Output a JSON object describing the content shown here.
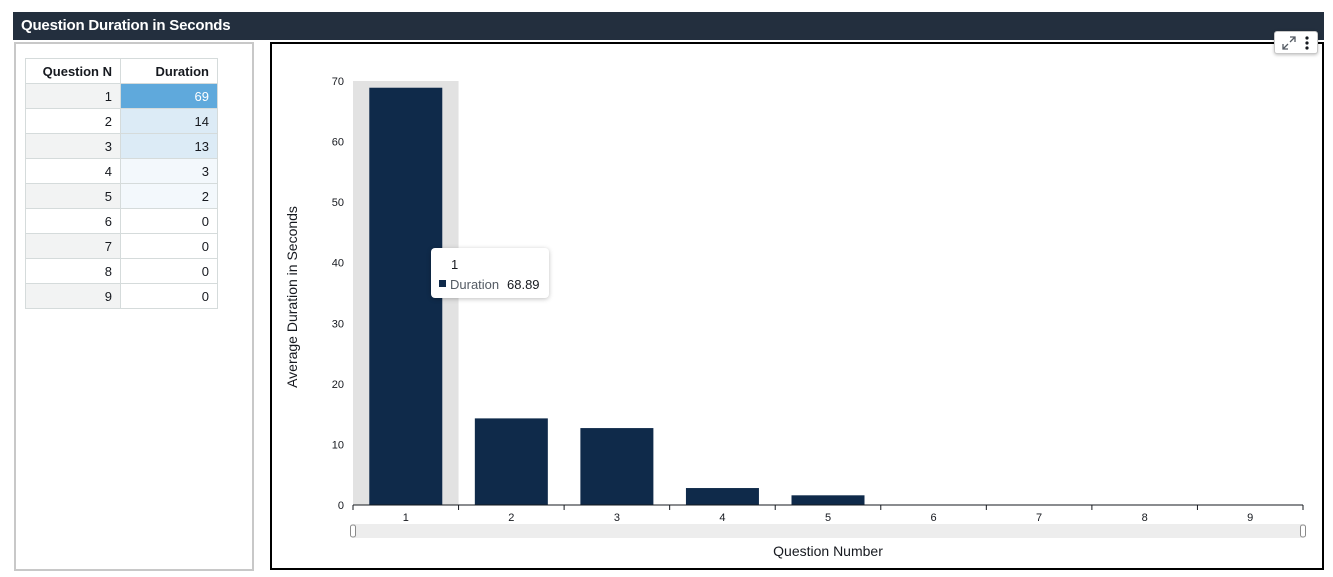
{
  "title": "Question Duration in Seconds",
  "table": {
    "headers": [
      "Question N",
      "Duration"
    ],
    "rows": [
      {
        "q": "1",
        "d": "69"
      },
      {
        "q": "2",
        "d": "14"
      },
      {
        "q": "3",
        "d": "13"
      },
      {
        "q": "4",
        "d": "3"
      },
      {
        "q": "5",
        "d": "2"
      },
      {
        "q": "6",
        "d": "0"
      },
      {
        "q": "7",
        "d": "0"
      },
      {
        "q": "8",
        "d": "0"
      },
      {
        "q": "9",
        "d": "0"
      }
    ]
  },
  "toolbar": {
    "expand_icon": "expand-icon",
    "menu_icon": "more-vertical-icon"
  },
  "tooltip": {
    "title": "1",
    "label": "Duration",
    "value": "68.89"
  },
  "colors": {
    "bar": "#0f2a4a",
    "highlight_band": "#e2e2e2",
    "header_bg": "#232f3e",
    "heat_max": "#5fa9dc",
    "heat_mid": "#dcebf6",
    "heat_low": "#f3f8fc"
  },
  "chart_data": {
    "type": "bar",
    "categories": [
      "1",
      "2",
      "3",
      "4",
      "5",
      "6",
      "7",
      "8",
      "9"
    ],
    "series": [
      {
        "name": "Duration",
        "values": [
          68.89,
          14.3,
          12.7,
          2.8,
          1.6,
          0,
          0,
          0,
          0
        ]
      }
    ],
    "xlabel": "Question Number",
    "ylabel": "Average Duration in Seconds",
    "ylim": [
      0,
      70
    ],
    "yticks": [
      0,
      10,
      20,
      30,
      40,
      50,
      60,
      70
    ],
    "highlighted_category": "1",
    "grid": false,
    "legend": "none"
  }
}
